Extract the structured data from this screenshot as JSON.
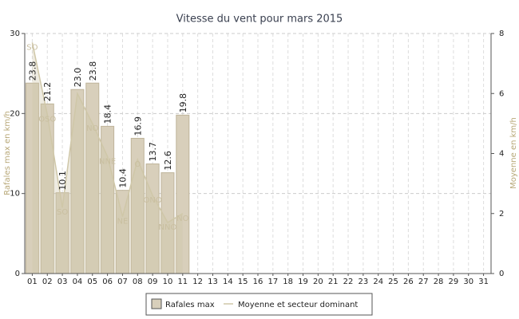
{
  "chart_data": {
    "type": "bar",
    "title": "Vitesse du vent pour mars 2015",
    "ylabel": "Rafales max en km/h",
    "y2label": "Moyenne en km/h",
    "categories": [
      "01",
      "02",
      "03",
      "04",
      "05",
      "06",
      "07",
      "08",
      "09",
      "10",
      "11",
      "12",
      "13",
      "14",
      "15",
      "16",
      "17",
      "18",
      "19",
      "20",
      "21",
      "22",
      "23",
      "24",
      "25",
      "26",
      "27",
      "28",
      "29",
      "30",
      "31"
    ],
    "series": [
      {
        "name": "Rafales max",
        "color": "#d8cfbb",
        "values": [
          23.8,
          21.2,
          10.1,
          23.0,
          23.8,
          18.4,
          10.4,
          16.9,
          13.7,
          12.6,
          19.8,
          null,
          null,
          null,
          null,
          null,
          null,
          null,
          null,
          null,
          null,
          null,
          null,
          null,
          null,
          null,
          null,
          null,
          null,
          null,
          null
        ],
        "value_labels": [
          "23.8",
          "21.2",
          "10.1",
          "23.0",
          "23.8",
          "18.4",
          "10.4",
          "16.9",
          "13.7",
          "12.6",
          "19.8",
          null,
          null,
          null,
          null,
          null,
          null,
          null,
          null,
          null,
          null,
          null,
          null,
          null,
          null,
          null,
          null,
          null,
          null,
          null,
          null
        ]
      },
      {
        "name": "Moyenne et secteur dominant",
        "color": "#cfc7a8",
        "axis": "y2",
        "values": [
          7.7,
          5.3,
          2.2,
          6.0,
          5.0,
          3.9,
          1.9,
          3.8,
          2.6,
          1.7,
          2.0,
          null,
          null,
          null,
          null,
          null,
          null,
          null,
          null,
          null,
          null,
          null,
          null,
          null,
          null,
          null,
          null,
          null,
          null,
          null,
          null
        ],
        "sectors": [
          "SO",
          "OSO",
          "SO",
          null,
          "NO",
          "NNE",
          "NE",
          "O",
          "ONO",
          "NNO",
          "NO",
          null,
          null,
          null,
          null,
          null,
          null,
          null,
          null,
          null,
          null,
          null,
          null,
          null,
          null,
          null,
          null,
          null,
          null,
          null,
          null
        ]
      }
    ],
    "ylim": [
      0,
      30
    ],
    "yticks": [
      0,
      10,
      20,
      30
    ],
    "y2lim": [
      0,
      8
    ],
    "y2ticks": [
      0,
      2,
      4,
      6,
      8
    ],
    "grid": true
  }
}
